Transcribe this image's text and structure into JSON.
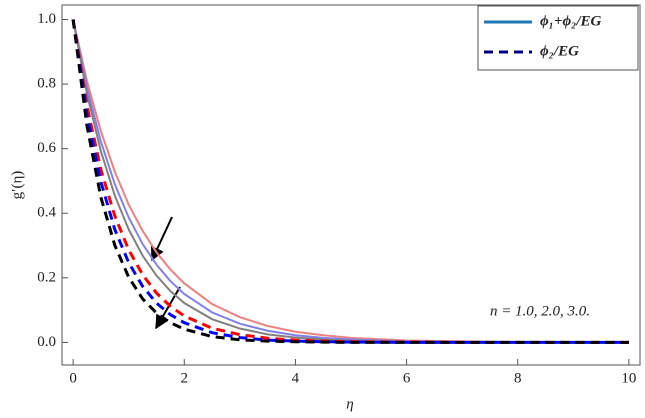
{
  "chart_data": {
    "type": "line",
    "x_label": "η",
    "y_label": "g′(η)",
    "annotation": "n = 1.0, 2.0, 3.0.",
    "x": [
      0,
      0.25,
      0.5,
      0.75,
      1,
      1.25,
      1.5,
      1.75,
      2,
      2.5,
      3,
      3.5,
      4,
      4.5,
      5,
      6,
      7,
      8,
      9,
      10
    ],
    "series": [
      {
        "color": "#f08080",
        "dash": false,
        "values": [
          1,
          0.809,
          0.654,
          0.529,
          0.427,
          0.346,
          0.279,
          0.226,
          0.183,
          0.119,
          0.078,
          0.051,
          0.033,
          0.022,
          0.014,
          0.006,
          0.003,
          0.001,
          0,
          0
        ]
      },
      {
        "color": "#8080f0",
        "dash": false,
        "values": [
          1,
          0.789,
          0.622,
          0.49,
          0.387,
          0.305,
          0.241,
          0.19,
          0.15,
          0.093,
          0.058,
          0.036,
          0.022,
          0.014,
          0.009,
          0.003,
          0.001,
          0,
          0,
          0
        ]
      },
      {
        "color": "#808080",
        "dash": false,
        "values": [
          1,
          0.769,
          0.592,
          0.455,
          0.35,
          0.269,
          0.207,
          0.159,
          0.122,
          0.072,
          0.043,
          0.025,
          0.015,
          0.009,
          0.005,
          0.002,
          0.001,
          0,
          0,
          0
        ]
      },
      {
        "color": "#ff0000",
        "dash": true,
        "values": [
          1,
          0.732,
          0.535,
          0.392,
          0.287,
          0.21,
          0.153,
          0.112,
          0.082,
          0.044,
          0.024,
          0.013,
          0.007,
          0.004,
          0.002,
          0.001,
          0,
          0,
          0,
          0
        ]
      },
      {
        "color": "#0000ff",
        "dash": true,
        "values": [
          1,
          0.705,
          0.497,
          0.35,
          0.247,
          0.174,
          0.122,
          0.086,
          0.061,
          0.03,
          0.015,
          0.007,
          0.004,
          0.002,
          0.001,
          0,
          0,
          0,
          0,
          0
        ]
      },
      {
        "color": "#000000",
        "dash": true,
        "values": [
          1,
          0.67,
          0.449,
          0.301,
          0.202,
          0.135,
          0.091,
          0.061,
          0.041,
          0.018,
          0.008,
          0.004,
          0.002,
          0.001,
          0,
          0,
          0,
          0,
          0,
          0
        ]
      }
    ],
    "legend": [
      {
        "label": "ϕ₁+ϕ₂/EG",
        "color": "#1f77b4",
        "dash": false
      },
      {
        "label": "ϕ₂/EG",
        "color": "#00008b",
        "dash": true
      }
    ],
    "xlim": [
      -0.2,
      10.2
    ],
    "ylim": [
      -0.07,
      1.045
    ],
    "xticks": [
      0,
      2,
      4,
      6,
      8,
      10
    ],
    "yticks": [
      {
        "value": 0,
        "label": "0.0"
      },
      {
        "value": 0.2,
        "label": "0.2"
      },
      {
        "value": 0.4,
        "label": "0.4"
      },
      {
        "value": 0.6,
        "label": "0.6"
      },
      {
        "value": 0.8,
        "label": "0.8"
      },
      {
        "value": 1,
        "label": "1.0"
      }
    ]
  }
}
